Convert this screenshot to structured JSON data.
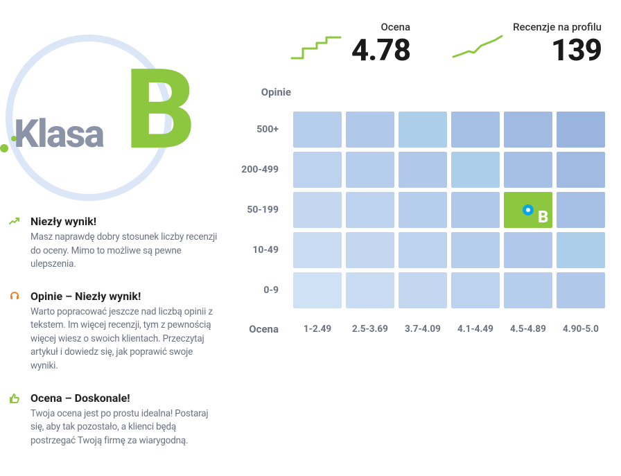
{
  "class_badge": {
    "label": "Klasa",
    "letter": "B",
    "label_color": "#8a94a6",
    "letter_color": "#8dc63f",
    "circle_color": "#dbe7f7",
    "dot_color": "#8dc63f"
  },
  "insights": [
    {
      "icon": "trend-up",
      "icon_color": "#8dc63f",
      "title": "Niezły wynik!",
      "desc": "Masz naprawdę dobry stosunek liczby recenzji do oceny. Mimo to możliwe są pewne ulepszenia."
    },
    {
      "icon": "headset",
      "icon_color": "#f5822a",
      "title": "Opinie – Niezły wynik!",
      "desc": "Warto popracować jeszcze nad liczbą opinii z tekstem. Im więcej recenzji, tym z pewnością więcej wiesz o swoich klientach. Przeczytaj artykuł i dowiedz się, jak poprawić swoje wyniki."
    },
    {
      "icon": "thumbs-up",
      "icon_color": "#8dc63f",
      "title": "Ocena – Doskonale!",
      "desc": "Twoja ocena jest po prostu idealna! Postaraj się, aby tak pozostało, a klienci będą postrzegać Twoją firmę za wiarygodną."
    }
  ],
  "stats": {
    "rating": {
      "label": "Ocena",
      "value": "4.78",
      "spark_color": "#8dc63f",
      "spark_type": "step"
    },
    "reviews": {
      "label": "Recenzje na profilu",
      "value": "139",
      "spark_color": "#8dc63f",
      "spark_type": "line"
    }
  },
  "heatmap": {
    "y_title": "Opinie",
    "x_title": "Ocena",
    "row_labels": [
      "500+",
      "200-499",
      "50-199",
      "10-49",
      "0-9"
    ],
    "col_labels": [
      "1-2.49",
      "2.5-3.69",
      "3.7-4.09",
      "4.1-4.49",
      "4.5-4.89",
      "4.90-5.0"
    ],
    "cell_colors": [
      [
        "#b7cdec",
        "#b2c8ea",
        "#accee8",
        "#a6c0e5",
        "#a0bae2",
        "#9ab4e0"
      ],
      [
        "#bdd2ee",
        "#b7cdec",
        "#b2c8ea",
        "#accee8",
        "#a6c0e5",
        "#a0bae2"
      ],
      [
        "#c3d7f0",
        "#bdd2ee",
        "#b7cdec",
        "#b2c8ea",
        "#accee8",
        "#a6c0e5"
      ],
      [
        "#c9dcf2",
        "#c3d7f0",
        "#bdd2ee",
        "#b7cdec",
        "#b2c8ea",
        "#accee8"
      ],
      [
        "#cfe1f4",
        "#c9dcf2",
        "#c3d7f0",
        "#bdd2ee",
        "#b7cdec",
        "#b2c8ea"
      ]
    ],
    "marker": {
      "row": 2,
      "col": 4,
      "cell_color": "#8dc63f",
      "ring_color": "#07a7e3",
      "center_color": "#ffffff",
      "label": "B",
      "label_color": "#ffffff"
    }
  },
  "colors": {
    "text_primary": "#1a1a1a",
    "text_muted": "#6b7280",
    "accent_green": "#8dc63f",
    "accent_orange": "#f5822a",
    "accent_blue": "#07a7e3",
    "background": "#ffffff"
  }
}
